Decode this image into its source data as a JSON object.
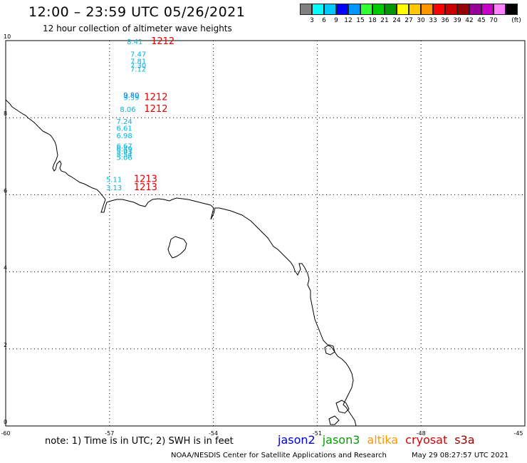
{
  "title": "12:00 – 23:59 UTC 05/26/2021",
  "subtitle": "12 hour collection of altimeter wave heights",
  "colorbar": {
    "unit": "(ft)",
    "colors": [
      "#808080",
      "#00ffff",
      "#00c8ff",
      "#0000ff",
      "#0096ff",
      "#32ff32",
      "#00c800",
      "#009600",
      "#ffff00",
      "#ffc800",
      "#ff9600",
      "#ff0000",
      "#c80000",
      "#960000",
      "#960096",
      "#c800c8",
      "#ff82ff",
      "#000000"
    ],
    "labels": [
      "3",
      "6",
      "9",
      "12",
      "15",
      "18",
      "21",
      "24",
      "27",
      "30",
      "33",
      "36",
      "39",
      "42",
      "45",
      "70"
    ]
  },
  "map": {
    "lon_ticks": [
      "-60",
      "-57",
      "-54",
      "-51",
      "-48",
      "-45"
    ],
    "lat_ticks": [
      "0",
      "2",
      "4",
      "6",
      "8",
      "10"
    ]
  },
  "observations": [
    {
      "value": "8.41",
      "color": "#00b4dc",
      "lon": -56.5,
      "lat": 9.91
    },
    {
      "value": "7.47",
      "color": "#00b4dc",
      "lon": -56.4,
      "lat": 9.58
    },
    {
      "value": "7.81",
      "color": "#00b4dc",
      "lon": -56.4,
      "lat": 9.4
    },
    {
      "value": "7.30",
      "color": "#00b4dc",
      "lon": -56.4,
      "lat": 9.29
    },
    {
      "value": "7.12",
      "color": "#00b4dc",
      "lon": -56.4,
      "lat": 9.2
    },
    {
      "value": "9.80",
      "color": "#0064dc",
      "lon": -56.6,
      "lat": 8.52
    },
    {
      "value": "9.39",
      "color": "#00b4dc",
      "lon": -56.6,
      "lat": 8.46
    },
    {
      "value": "8.06",
      "color": "#00b4dc",
      "lon": -56.7,
      "lat": 8.15
    },
    {
      "value": "7.24",
      "color": "#00b4dc",
      "lon": -56.8,
      "lat": 7.84
    },
    {
      "value": "6.61",
      "color": "#00b4dc",
      "lon": -56.8,
      "lat": 7.66
    },
    {
      "value": "6.98",
      "color": "#00b4dc",
      "lon": -56.8,
      "lat": 7.47
    },
    {
      "value": "6.67",
      "color": "#00b4dc",
      "lon": -56.8,
      "lat": 7.2
    },
    {
      "value": "6.49",
      "color": "#00b4dc",
      "lon": -56.8,
      "lat": 7.13
    },
    {
      "value": "5.93",
      "color": "#00b4dc",
      "lon": -56.8,
      "lat": 7.05
    },
    {
      "value": "5.54",
      "color": "#00b4dc",
      "lon": -56.8,
      "lat": 6.98
    },
    {
      "value": "5.06",
      "color": "#00b4dc",
      "lon": -56.8,
      "lat": 6.9
    },
    {
      "value": "5.11",
      "color": "#00b4dc",
      "lon": -57.1,
      "lat": 6.33
    },
    {
      "value": "3.13",
      "color": "#00b4dc",
      "lon": -57.1,
      "lat": 6.12
    }
  ],
  "time_labels": [
    {
      "text": "1212",
      "lon": -55.8,
      "lat": 9.91
    },
    {
      "text": "1212",
      "lon": -56.0,
      "lat": 8.46
    },
    {
      "text": "1212",
      "lon": -56.0,
      "lat": 8.15
    },
    {
      "text": "1213",
      "lon": -56.3,
      "lat": 6.33
    },
    {
      "text": "1213",
      "lon": -56.3,
      "lat": 6.12
    }
  ],
  "note": "note: 1) Time is in UTC; 2) SWH is in feet",
  "satellites": [
    {
      "name": "jason2",
      "color": "#0000dc"
    },
    {
      "name": "jason3",
      "color": "#00a000"
    },
    {
      "name": "altika",
      "color": "#ff9600"
    },
    {
      "name": "cryosat",
      "color": "#dc0000"
    },
    {
      "name": "s3a",
      "color": "#960000"
    }
  ],
  "credit": "NOAA/NESDIS Center for Satellite Applications and Research",
  "timestamp": "May 29 08:27:57 UTC 2021"
}
